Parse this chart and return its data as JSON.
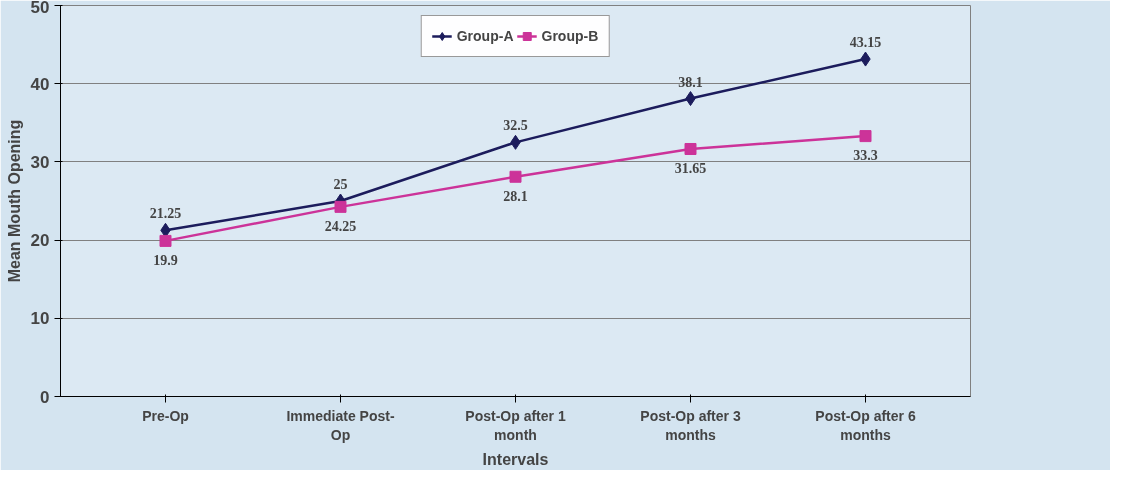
{
  "chart_data": {
    "type": "line",
    "xlabel": "Intervals",
    "ylabel": "Mean Mouth Opening",
    "categories": [
      "Pre-Op",
      "Immediate Post-Op",
      "Post-Op after 1 month",
      "Post-Op after 3 months",
      "Post-Op after 6 months"
    ],
    "series": [
      {
        "name": "Group-A",
        "color": "#1c1c5c",
        "marker": "diamond",
        "values": [
          21.25,
          25,
          32.5,
          38.1,
          43.15
        ]
      },
      {
        "name": "Group-B",
        "color": "#cc3399",
        "marker": "square",
        "values": [
          19.9,
          24.25,
          28.1,
          31.65,
          33.3
        ]
      }
    ],
    "ylim": [
      0,
      50
    ],
    "yticks": [
      0,
      10,
      20,
      30,
      40,
      50
    ],
    "grid": "y",
    "legend": "top",
    "data_labels": true,
    "line_style": "solid"
  }
}
